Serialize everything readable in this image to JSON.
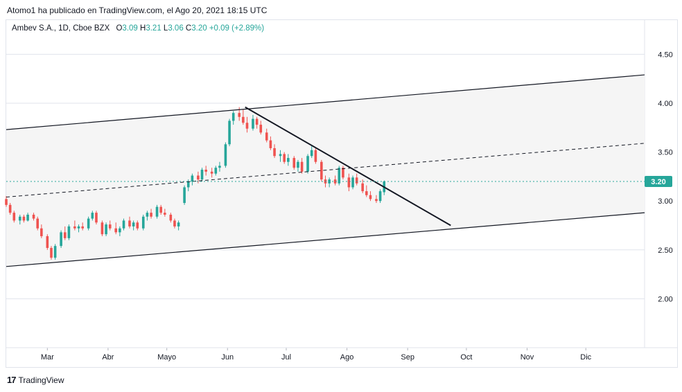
{
  "header": {
    "publish_line": "Atomo1 ha publicado en TradingView.com, el Ago 20, 2021 18:15 UTC"
  },
  "legend": {
    "symbol": "Ambev S.A., 1D, Cboe BZX",
    "o_label": "O",
    "o_value": "3.09",
    "h_label": "H",
    "h_value": "3.21",
    "l_label": "L",
    "l_value": "3.06",
    "c_label": "C",
    "c_value": "3.20",
    "change": "+0.09 (+2.89%)"
  },
  "footer": {
    "brand": "TradingView",
    "logo": "17"
  },
  "colors": {
    "up": "#26a69a",
    "down": "#ef5350",
    "price_line": "#26a69a",
    "grid": "#e0e3eb",
    "channel_fill": "#f5f5f5"
  },
  "chart_data": {
    "type": "candlestick",
    "x_tick_labels": [
      "Mar",
      "Abr",
      "Mayo",
      "Jun",
      "Jul",
      "Ago",
      "Sep",
      "Oct",
      "Nov",
      "Dic"
    ],
    "y_tick_labels": [
      "4.50",
      "4.00",
      "3.50",
      "3.00",
      "2.50",
      "2.00"
    ],
    "y_ticks": [
      4.5,
      4.0,
      3.5,
      3.0,
      2.5,
      2.0
    ],
    "ylim": [
      1.5,
      4.85
    ],
    "x_range": [
      "2021-02-08",
      "2021-12-31"
    ],
    "last_price": 3.2,
    "last_price_label": "3.20",
    "grid": true,
    "candles": [
      [
        "2021-02-08",
        3.02,
        3.05,
        2.94,
        2.96
      ],
      [
        "2021-02-10",
        2.96,
        2.98,
        2.86,
        2.88
      ],
      [
        "2021-02-12",
        2.88,
        2.9,
        2.78,
        2.8
      ],
      [
        "2021-02-15",
        2.8,
        2.86,
        2.76,
        2.84
      ],
      [
        "2021-02-17",
        2.84,
        2.86,
        2.78,
        2.8
      ],
      [
        "2021-02-19",
        2.8,
        2.88,
        2.79,
        2.86
      ],
      [
        "2021-02-22",
        2.86,
        2.88,
        2.8,
        2.82
      ],
      [
        "2021-02-24",
        2.82,
        2.84,
        2.7,
        2.72
      ],
      [
        "2021-02-26",
        2.72,
        2.76,
        2.62,
        2.64
      ],
      [
        "2021-03-01",
        2.64,
        2.66,
        2.5,
        2.52
      ],
      [
        "2021-03-03",
        2.52,
        2.54,
        2.4,
        2.42
      ],
      [
        "2021-03-05",
        2.42,
        2.56,
        2.4,
        2.54
      ],
      [
        "2021-03-08",
        2.54,
        2.7,
        2.52,
        2.68
      ],
      [
        "2021-03-10",
        2.68,
        2.74,
        2.6,
        2.62
      ],
      [
        "2021-03-12",
        2.62,
        2.76,
        2.6,
        2.74
      ],
      [
        "2021-03-15",
        2.74,
        2.8,
        2.7,
        2.72
      ],
      [
        "2021-03-17",
        2.72,
        2.76,
        2.68,
        2.74
      ],
      [
        "2021-03-19",
        2.74,
        2.78,
        2.7,
        2.72
      ],
      [
        "2021-03-22",
        2.72,
        2.84,
        2.7,
        2.82
      ],
      [
        "2021-03-24",
        2.82,
        2.9,
        2.8,
        2.88
      ],
      [
        "2021-03-26",
        2.88,
        2.9,
        2.76,
        2.78
      ],
      [
        "2021-03-29",
        2.78,
        2.8,
        2.64,
        2.66
      ],
      [
        "2021-03-31",
        2.66,
        2.78,
        2.64,
        2.76
      ],
      [
        "2021-04-02",
        2.76,
        2.8,
        2.7,
        2.72
      ],
      [
        "2021-04-05",
        2.72,
        2.78,
        2.66,
        2.68
      ],
      [
        "2021-04-07",
        2.68,
        2.74,
        2.64,
        2.72
      ],
      [
        "2021-04-09",
        2.72,
        2.82,
        2.7,
        2.8
      ],
      [
        "2021-04-12",
        2.8,
        2.84,
        2.72,
        2.74
      ],
      [
        "2021-04-14",
        2.74,
        2.8,
        2.7,
        2.78
      ],
      [
        "2021-04-16",
        2.78,
        2.8,
        2.7,
        2.72
      ],
      [
        "2021-04-19",
        2.72,
        2.86,
        2.7,
        2.84
      ],
      [
        "2021-04-21",
        2.84,
        2.9,
        2.8,
        2.88
      ],
      [
        "2021-04-23",
        2.88,
        2.92,
        2.82,
        2.84
      ],
      [
        "2021-04-26",
        2.84,
        2.96,
        2.82,
        2.94
      ],
      [
        "2021-04-28",
        2.94,
        2.96,
        2.86,
        2.88
      ],
      [
        "2021-04-30",
        2.88,
        2.92,
        2.84,
        2.86
      ],
      [
        "2021-05-03",
        2.86,
        2.88,
        2.78,
        2.8
      ],
      [
        "2021-05-05",
        2.8,
        2.82,
        2.72,
        2.74
      ],
      [
        "2021-05-07",
        2.74,
        2.8,
        2.7,
        2.78
      ],
      [
        "2021-05-10",
        2.98,
        3.16,
        2.96,
        3.14
      ],
      [
        "2021-05-12",
        3.14,
        3.22,
        3.1,
        3.2
      ],
      [
        "2021-05-14",
        3.2,
        3.28,
        3.16,
        3.26
      ],
      [
        "2021-05-17",
        3.26,
        3.3,
        3.18,
        3.22
      ],
      [
        "2021-05-19",
        3.22,
        3.34,
        3.2,
        3.32
      ],
      [
        "2021-05-21",
        3.32,
        3.36,
        3.26,
        3.3
      ],
      [
        "2021-05-24",
        3.3,
        3.34,
        3.24,
        3.28
      ],
      [
        "2021-05-26",
        3.28,
        3.36,
        3.26,
        3.34
      ],
      [
        "2021-05-28",
        3.34,
        3.4,
        3.3,
        3.36
      ],
      [
        "2021-05-31",
        3.36,
        3.6,
        3.34,
        3.58
      ],
      [
        "2021-06-02",
        3.58,
        3.84,
        3.56,
        3.82
      ],
      [
        "2021-06-04",
        3.82,
        3.92,
        3.78,
        3.9
      ],
      [
        "2021-06-07",
        3.9,
        3.96,
        3.82,
        3.86
      ],
      [
        "2021-06-09",
        3.86,
        3.94,
        3.78,
        3.8
      ],
      [
        "2021-06-11",
        3.8,
        3.86,
        3.7,
        3.74
      ],
      [
        "2021-06-14",
        3.74,
        3.88,
        3.72,
        3.84
      ],
      [
        "2021-06-16",
        3.84,
        3.86,
        3.74,
        3.78
      ],
      [
        "2021-06-18",
        3.78,
        3.82,
        3.68,
        3.7
      ],
      [
        "2021-06-21",
        3.7,
        3.74,
        3.6,
        3.62
      ],
      [
        "2021-06-23",
        3.62,
        3.66,
        3.52,
        3.54
      ],
      [
        "2021-06-25",
        3.54,
        3.58,
        3.44,
        3.46
      ],
      [
        "2021-06-28",
        3.46,
        3.52,
        3.4,
        3.48
      ],
      [
        "2021-06-30",
        3.48,
        3.5,
        3.38,
        3.4
      ],
      [
        "2021-07-02",
        3.4,
        3.48,
        3.36,
        3.44
      ],
      [
        "2021-07-05",
        3.44,
        3.46,
        3.32,
        3.34
      ],
      [
        "2021-07-07",
        3.34,
        3.42,
        3.3,
        3.4
      ],
      [
        "2021-07-09",
        3.4,
        3.44,
        3.28,
        3.3
      ],
      [
        "2021-07-12",
        3.3,
        3.48,
        3.28,
        3.46
      ],
      [
        "2021-07-14",
        3.46,
        3.56,
        3.44,
        3.52
      ],
      [
        "2021-07-16",
        3.52,
        3.54,
        3.38,
        3.4
      ],
      [
        "2021-07-19",
        3.4,
        3.42,
        3.2,
        3.22
      ],
      [
        "2021-07-21",
        3.22,
        3.26,
        3.14,
        3.18
      ],
      [
        "2021-07-23",
        3.18,
        3.24,
        3.14,
        3.22
      ],
      [
        "2021-07-26",
        3.22,
        3.26,
        3.16,
        3.18
      ],
      [
        "2021-07-28",
        3.18,
        3.36,
        3.16,
        3.34
      ],
      [
        "2021-07-30",
        3.34,
        3.36,
        3.22,
        3.24
      ],
      [
        "2021-08-02",
        3.24,
        3.28,
        3.1,
        3.14
      ],
      [
        "2021-08-04",
        3.14,
        3.26,
        3.12,
        3.24
      ],
      [
        "2021-08-06",
        3.24,
        3.28,
        3.16,
        3.18
      ],
      [
        "2021-08-09",
        3.18,
        3.22,
        3.08,
        3.1
      ],
      [
        "2021-08-11",
        3.1,
        3.16,
        3.04,
        3.06
      ],
      [
        "2021-08-13",
        3.06,
        3.1,
        3.0,
        3.02
      ],
      [
        "2021-08-16",
        3.02,
        3.06,
        2.98,
        3.0
      ],
      [
        "2021-08-18",
        3.0,
        3.12,
        2.98,
        3.1
      ],
      [
        "2021-08-20",
        3.09,
        3.21,
        3.06,
        3.2
      ]
    ],
    "drawings": {
      "channel_upper": [
        [
          "2021-02-08",
          3.73
        ],
        [
          "2021-12-31",
          4.29
        ]
      ],
      "channel_middle": [
        [
          "2021-02-08",
          3.04
        ],
        [
          "2021-12-31",
          3.59
        ]
      ],
      "channel_lower": [
        [
          "2021-02-08",
          2.33
        ],
        [
          "2021-12-31",
          2.88
        ]
      ],
      "trend_line": [
        [
          "2021-06-10",
          3.96
        ],
        [
          "2021-09-23",
          2.75
        ]
      ]
    }
  }
}
